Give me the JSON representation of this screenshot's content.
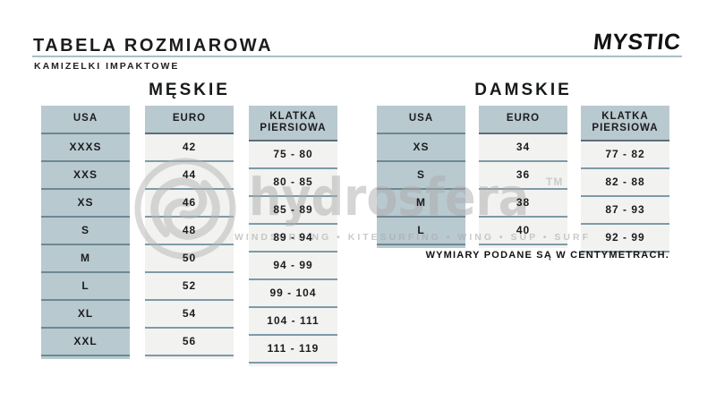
{
  "header": {
    "title": "TABELA ROZMIAROWA",
    "subtitle": "KAMIZELKI IMPAKTOWE",
    "brand": "MYSTIC"
  },
  "sections": [
    {
      "id": "meskie",
      "title": "MĘSKIE",
      "columns": [
        {
          "key": "usa",
          "header_lines": [
            "USA"
          ],
          "cells": [
            "XXXS",
            "XXS",
            "XS",
            "S",
            "M",
            "L",
            "XL",
            "XXL"
          ]
        },
        {
          "key": "euro",
          "header_lines": [
            "EURO"
          ],
          "cells": [
            "42",
            "44",
            "46",
            "48",
            "50",
            "52",
            "54",
            "56"
          ]
        },
        {
          "key": "klatka-piersiowa",
          "header_lines": [
            "KLATKA",
            "PIERSIOWA"
          ],
          "cells": [
            "75 - 80",
            "80 - 85",
            "85 - 89",
            "89 - 94",
            "94 - 99",
            "99 - 104",
            "104 - 111",
            "111 - 119"
          ]
        }
      ]
    },
    {
      "id": "damskie",
      "title": "DAMSKIE",
      "columns": [
        {
          "key": "usa",
          "header_lines": [
            "USA"
          ],
          "cells": [
            "XS",
            "S",
            "M",
            "L"
          ]
        },
        {
          "key": "euro",
          "header_lines": [
            "EURO"
          ],
          "cells": [
            "34",
            "36",
            "38",
            "40"
          ]
        },
        {
          "key": "klatka-piersiowa",
          "header_lines": [
            "KLATKA",
            "PIERSIOWA"
          ],
          "cells": [
            "77 - 82",
            "82 - 88",
            "87 - 93",
            "92 - 99"
          ]
        }
      ]
    }
  ],
  "footnote": "WYMIARY PODANE SĄ W CENTYMETRACH.",
  "watermark": {
    "logo": "hydrosfera-circle-logo",
    "name": "hydrosfera",
    "tm": "TM",
    "tagline": "WINDSURFING • KITESURFING • WING • SUP • SURF"
  },
  "colors": {
    "cell_shade": "#b9c9d0",
    "cell_light": "#f2f2f1",
    "sep_light": "#7e9aa7",
    "sep_shade": "#6d8893",
    "sep_dark": "#5a6e77",
    "rule": "#a9bfc8",
    "text": "#1a1c1e",
    "watermark": "#bdbdbd"
  }
}
